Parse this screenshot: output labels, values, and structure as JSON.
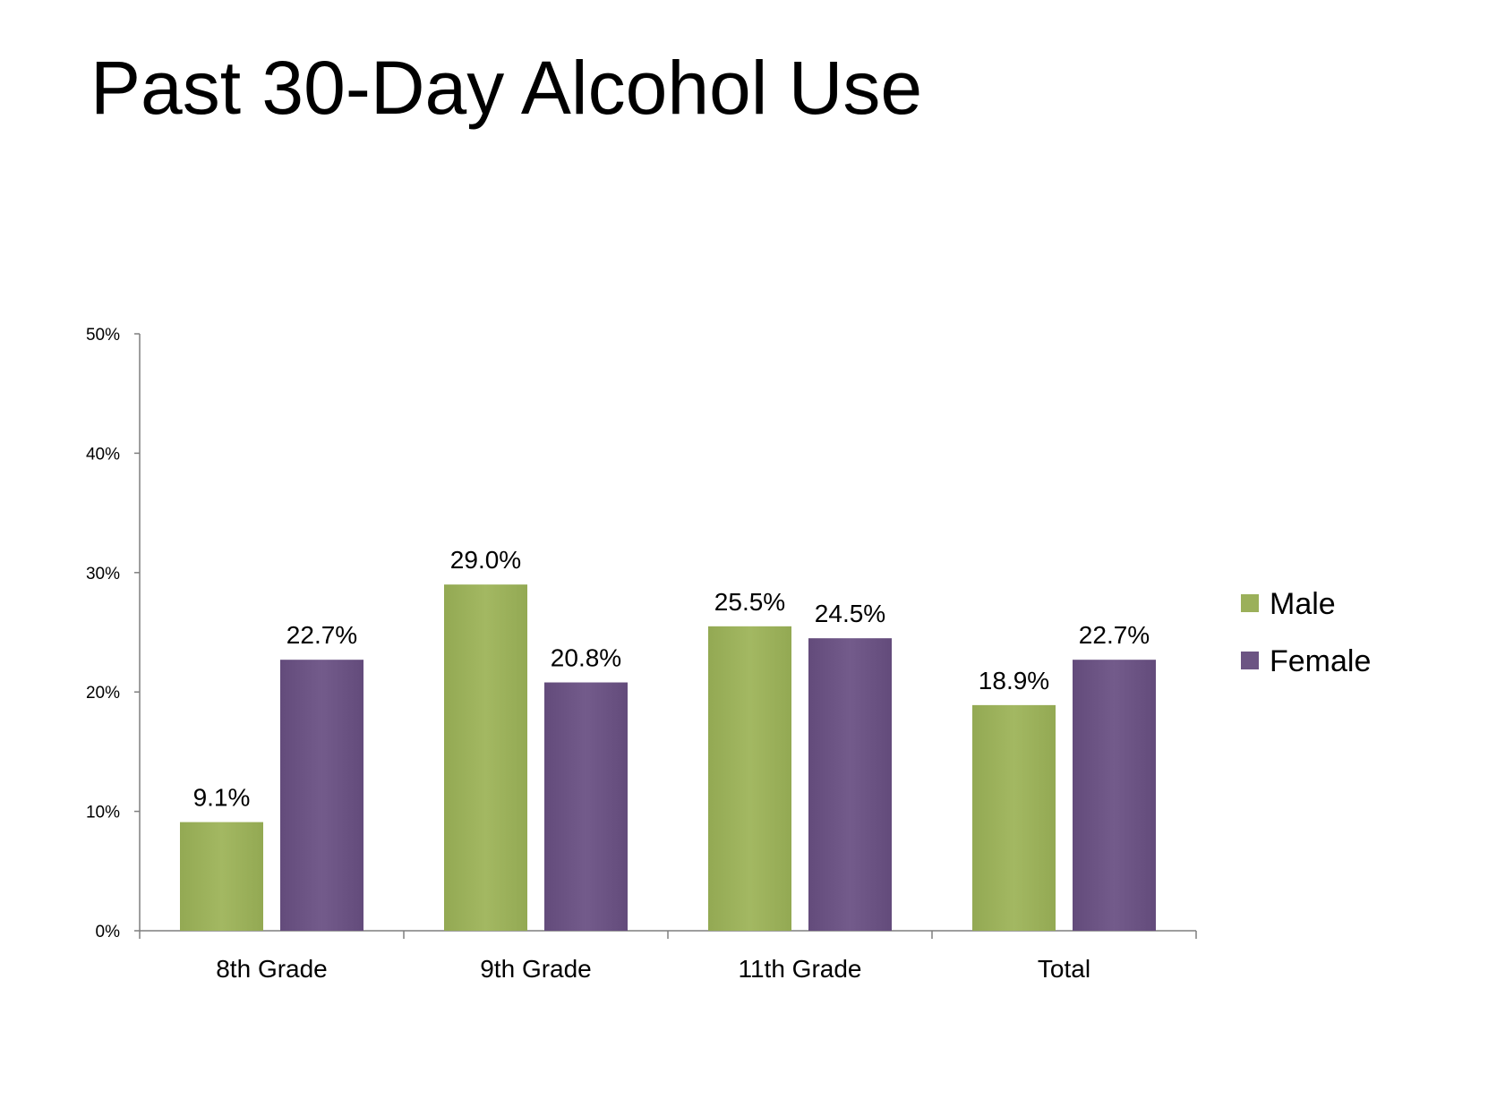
{
  "slide": {
    "title": "Past 30-Day Alcohol Use"
  },
  "chart_data": {
    "type": "bar",
    "title": "",
    "xlabel": "",
    "ylabel": "",
    "categories": [
      "8th Grade",
      "9th Grade",
      "11th Grade",
      "Total"
    ],
    "series": [
      {
        "name": "Male",
        "color": "#9BB05A",
        "values": [
          9.1,
          29.0,
          25.5,
          18.9
        ],
        "labels": [
          "9.1%",
          "29.0%",
          "25.5%",
          "18.9%"
        ]
      },
      {
        "name": "Female",
        "color": "#6C5483",
        "values": [
          22.7,
          20.8,
          24.5,
          22.7
        ],
        "labels": [
          "22.7%",
          "20.8%",
          "24.5%",
          "22.7%"
        ]
      }
    ],
    "ylim": [
      0,
      50
    ],
    "yticks": [
      0,
      10,
      20,
      30,
      40,
      50
    ],
    "ytick_labels": [
      "0%",
      "10%",
      "20%",
      "30%",
      "40%",
      "50%"
    ],
    "grid": false,
    "legend_position": "right"
  }
}
